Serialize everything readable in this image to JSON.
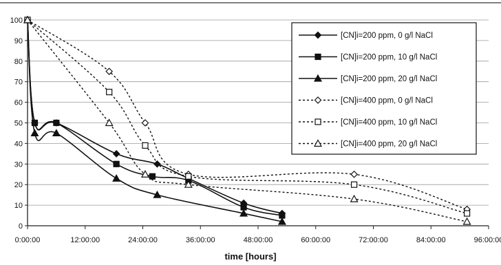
{
  "chart_data": {
    "type": "line",
    "title": "",
    "xlabel": "time [hours]",
    "ylabel": "",
    "xlim": [
      0,
      96
    ],
    "ylim": [
      0,
      100
    ],
    "x_ticks": [
      0,
      12,
      24,
      36,
      48,
      60,
      72,
      84,
      96
    ],
    "x_tick_labels": [
      "0:00:00",
      "12:00:00",
      "24:00:00",
      "36:00:00",
      "48:00:00",
      "60:00:00",
      "72:00:00",
      "84:00:00",
      "96:00:00"
    ],
    "y_ticks": [
      0,
      10,
      20,
      30,
      40,
      50,
      60,
      70,
      80,
      90,
      100
    ],
    "y_tick_labels": [
      "0",
      "10",
      "20",
      "30",
      "40",
      "50",
      "60",
      "70",
      "80",
      "90",
      "100"
    ],
    "grid": true,
    "legend_position": "top-right",
    "series": [
      {
        "name": "[CN]i=200 ppm, 0 g/l NaCl",
        "marker": "diamond-filled",
        "line": "solid",
        "x": [
          0,
          1.5,
          6,
          18.5,
          27,
          33.5,
          45,
          53
        ],
        "y": [
          100,
          50,
          50,
          35,
          30,
          23,
          11,
          6
        ]
      },
      {
        "name": "[CN]i=200 ppm, 10 g/l NaCl",
        "marker": "square-filled",
        "line": "solid",
        "x": [
          0,
          1.5,
          6,
          18.5,
          26,
          33.5,
          45,
          53
        ],
        "y": [
          100,
          50,
          50,
          30,
          24,
          22,
          9,
          5
        ]
      },
      {
        "name": "[CN]i=200 ppm, 20 g/l NaCl",
        "marker": "triangle-filled",
        "line": "solid",
        "x": [
          0,
          1.5,
          6,
          18.5,
          27,
          45,
          53
        ],
        "y": [
          100,
          45,
          45,
          23,
          15,
          6,
          2
        ]
      },
      {
        "name": "[CN]i=400 ppm, 0 g/l NaCl",
        "marker": "diamond-open",
        "line": "dotted",
        "x": [
          0,
          17,
          24.5,
          33.5,
          68,
          91.5
        ],
        "y": [
          100,
          75,
          50,
          25,
          25,
          8
        ]
      },
      {
        "name": "[CN]i=400 ppm, 10 g/l NaCl",
        "marker": "square-open",
        "line": "dotted",
        "x": [
          0,
          17,
          24.5,
          33.5,
          68,
          91.5
        ],
        "y": [
          100,
          65,
          39,
          24,
          20,
          6
        ]
      },
      {
        "name": "[CN]i=400 ppm, 20 g/l NaCl",
        "marker": "triangle-open",
        "line": "dotted",
        "x": [
          0,
          17,
          24.5,
          33.5,
          68,
          91.5
        ],
        "y": [
          100,
          50,
          25,
          20,
          13,
          2
        ]
      }
    ]
  }
}
